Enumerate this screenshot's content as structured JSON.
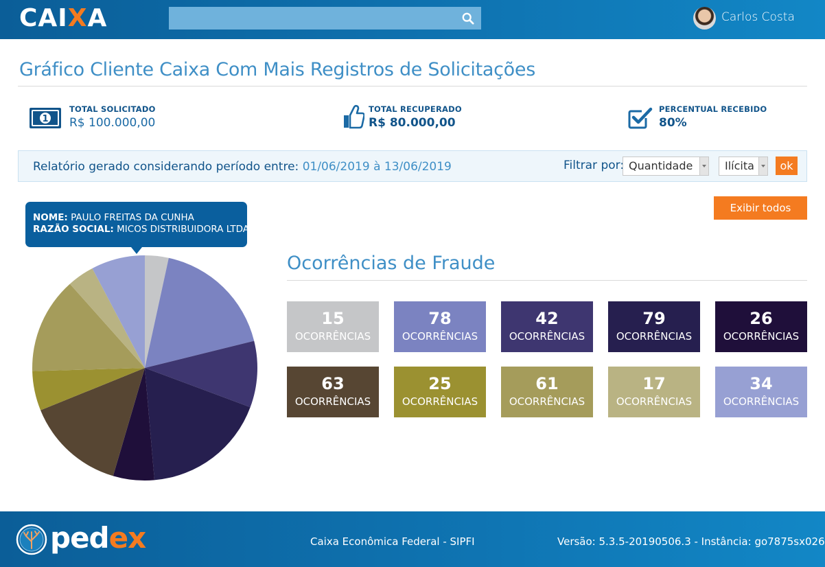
{
  "header": {
    "logo_main": "CAI",
    "logo_x": "X",
    "logo_end": "A",
    "search_placeholder": "",
    "user_name": "Carlos Costa"
  },
  "page": {
    "title": "Gráfico Cliente Caixa Com Mais Registros de Solicitações"
  },
  "stats": [
    {
      "label": "TOTAL SOLICITADO",
      "value": "R$ 100.000,00",
      "icon": "money-bill-icon"
    },
    {
      "label": "TOTAL RECUPERADO",
      "value": "R$ 80.000,00",
      "icon": "thumbs-up-icon"
    },
    {
      "label": "PERCENTUAL RECEBIDO",
      "value": "80%",
      "icon": "checkbox-icon"
    }
  ],
  "filter": {
    "report_label": "Relatório gerado considerando período entre:",
    "date_range": "01/06/2019 à 13/06/2019",
    "filter_label": "Filtrar por:",
    "select_1_value": "Quantidade",
    "select_2_value": "Ilícita",
    "ok_label": "ok"
  },
  "tooltip": {
    "name_label": "NOME:",
    "name_value": "PAULO FREITAS DA CUNHA",
    "company_label": "RAZÃO SOCIAL:",
    "company_value": "MICOS DISTRIBUIDORA LTDA"
  },
  "show_all_label": "Exibir todos",
  "section_title": "Ocorrências de Fraude",
  "chart_data": {
    "type": "pie",
    "title": "",
    "caption": "OCORRÊNCIAS",
    "slices": [
      {
        "value": 15,
        "color": "#c5c6c8"
      },
      {
        "value": 78,
        "color": "#7b83c1"
      },
      {
        "value": 42,
        "color": "#3e3670"
      },
      {
        "value": 79,
        "color": "#261f4f"
      },
      {
        "value": 26,
        "color": "#1f0f3a"
      },
      {
        "value": 63,
        "color": "#574633"
      },
      {
        "value": 25,
        "color": "#9b9131"
      },
      {
        "value": 61,
        "color": "#a59c5b"
      },
      {
        "value": 17,
        "color": "#b9b383"
      },
      {
        "value": 34,
        "color": "#97a0d3"
      }
    ]
  },
  "footer": {
    "brand_1": "ped",
    "brand_2": "e",
    "brand_3": "x",
    "center_text": "Caixa Econômica Federal - SIPFI",
    "version_text": "Versão: 5.3.5-20190506.3 - Instância: go7875sx026"
  },
  "colors": {
    "primary_blue": "#0f75b3",
    "accent_orange": "#f47b20",
    "title_blue": "#3f8fc6"
  }
}
